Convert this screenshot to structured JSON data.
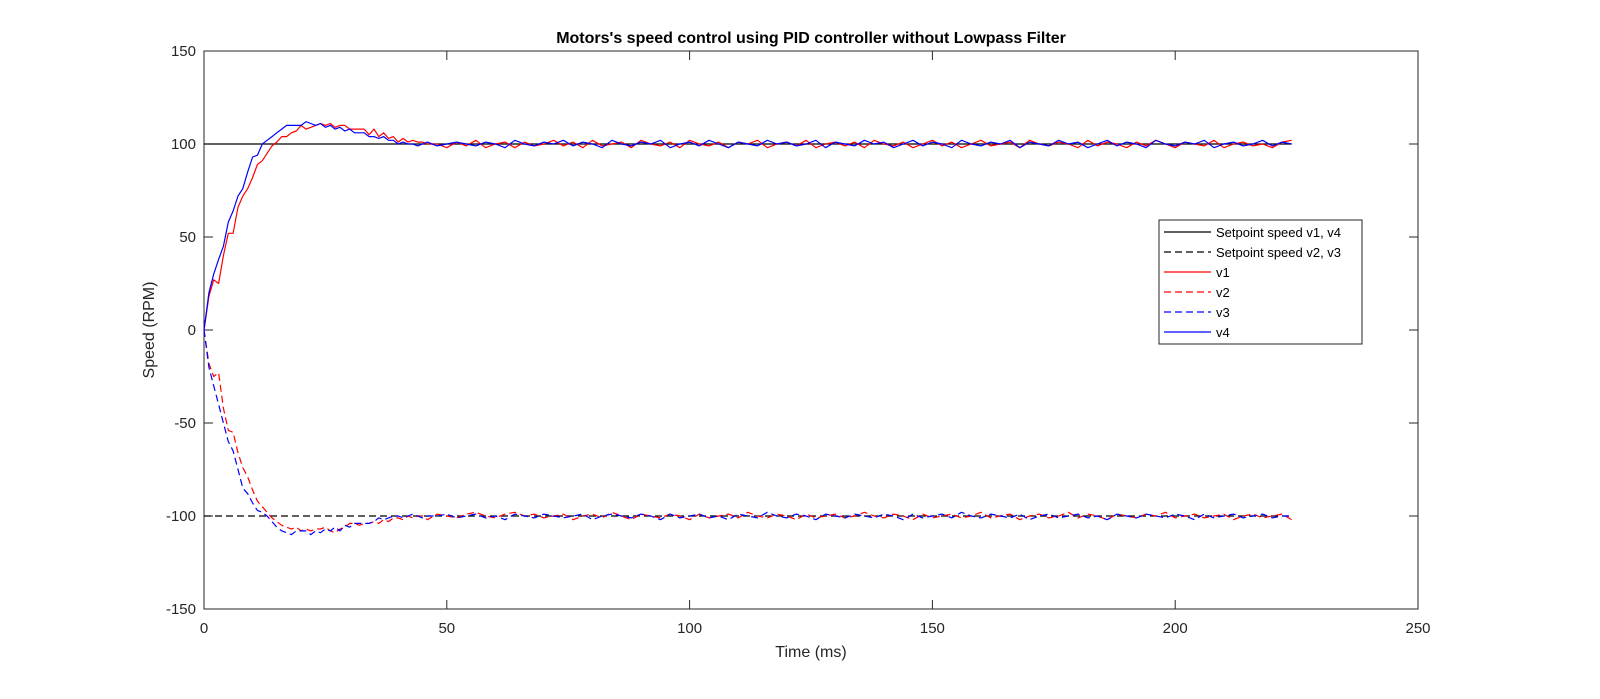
{
  "chart_data": {
    "type": "line",
    "title": "Motors's speed control using PID controller without Lowpass Filter",
    "xlabel": "Time (ms)",
    "ylabel": "Speed (RPM)",
    "xlim": [
      0,
      250
    ],
    "ylim": [
      -150,
      150
    ],
    "x_ticks": [
      0,
      50,
      100,
      150,
      200,
      250
    ],
    "y_ticks": [
      -150,
      -100,
      -50,
      0,
      50,
      100,
      150
    ],
    "x_tick_labels": [
      "0",
      "50",
      "100",
      "150",
      "200",
      "250"
    ],
    "y_tick_labels": [
      "-150",
      "-100",
      "-50",
      "0",
      "50",
      "100",
      "150"
    ],
    "grid": false,
    "legend_position": "right",
    "series": [
      {
        "name": "Setpoint speed v1, v4",
        "color": "#000000",
        "dash": "solid",
        "x": [
          0,
          224
        ],
        "y": [
          100,
          100
        ]
      },
      {
        "name": "Setpoint speed v2, v3",
        "color": "#000000",
        "dash": "dashed",
        "x": [
          0,
          224
        ],
        "y": [
          -100,
          -100
        ]
      },
      {
        "name": "v1",
        "color": "#ff0000",
        "dash": "solid",
        "x": [
          0,
          1,
          2,
          3,
          4,
          5,
          6,
          7,
          8,
          9,
          10,
          11,
          12,
          13,
          14,
          15,
          16,
          17,
          18,
          19,
          20,
          21,
          22,
          23,
          24,
          25,
          26,
          27,
          28,
          29,
          30,
          31,
          32,
          33,
          34,
          35,
          36,
          37,
          38,
          39,
          40,
          41,
          42,
          43,
          44,
          45,
          46,
          48,
          50,
          52,
          54,
          56,
          58,
          60,
          62,
          64,
          66,
          68,
          70,
          72,
          74,
          76,
          78,
          80,
          82,
          84,
          86,
          88,
          90,
          92,
          94,
          96,
          98,
          100,
          102,
          104,
          106,
          108,
          110,
          112,
          114,
          116,
          118,
          120,
          122,
          124,
          126,
          128,
          130,
          132,
          134,
          136,
          138,
          140,
          142,
          144,
          146,
          148,
          150,
          152,
          154,
          156,
          158,
          160,
          162,
          164,
          166,
          168,
          170,
          172,
          174,
          176,
          178,
          180,
          182,
          184,
          186,
          188,
          190,
          192,
          194,
          196,
          198,
          200,
          202,
          204,
          206,
          208,
          210,
          212,
          214,
          216,
          218,
          220,
          222,
          224
        ],
        "y": [
          0,
          18,
          27,
          25,
          40,
          52,
          52,
          66,
          72,
          76,
          82,
          89,
          91,
          95,
          99,
          101,
          104,
          104,
          106,
          107,
          110,
          108,
          109,
          110,
          111,
          110,
          111,
          109,
          110,
          110,
          108,
          108,
          108,
          108,
          105,
          108,
          104,
          106,
          103,
          104,
          101,
          103,
          101,
          102,
          101,
          101,
          100,
          100,
          98,
          101,
          99,
          102,
          98,
          100,
          101,
          98,
          101,
          99,
          100,
          102,
          99,
          101,
          98,
          102,
          99,
          100,
          101,
          98,
          102,
          100,
          99,
          101,
          98,
          102,
          100,
          99,
          101,
          98,
          101,
          100,
          102,
          98,
          100,
          101,
          99,
          102,
          98,
          100,
          101,
          99,
          101,
          98,
          102,
          100,
          99,
          101,
          98,
          100,
          102,
          99,
          101,
          98,
          100,
          102,
          99,
          100,
          101,
          98,
          102,
          100,
          99,
          101,
          100,
          98,
          102,
          99,
          101,
          100,
          98,
          101,
          99,
          102,
          100,
          98,
          101,
          100,
          99,
          102,
          98,
          100,
          101,
          99,
          100,
          98,
          101,
          102
        ]
      },
      {
        "name": "v2",
        "color": "#ff0000",
        "dash": "dashed",
        "x": [
          0,
          1,
          2,
          3,
          4,
          5,
          6,
          7,
          8,
          9,
          10,
          11,
          12,
          13,
          14,
          15,
          16,
          17,
          18,
          19,
          20,
          21,
          22,
          23,
          24,
          25,
          26,
          27,
          28,
          29,
          30,
          31,
          32,
          33,
          34,
          35,
          36,
          37,
          38,
          39,
          40,
          41,
          42,
          43,
          44,
          45,
          46,
          48,
          50,
          52,
          54,
          56,
          58,
          60,
          62,
          64,
          66,
          68,
          70,
          72,
          74,
          76,
          78,
          80,
          82,
          84,
          86,
          88,
          90,
          92,
          94,
          96,
          98,
          100,
          102,
          104,
          106,
          108,
          110,
          112,
          114,
          116,
          118,
          120,
          122,
          124,
          126,
          128,
          130,
          132,
          134,
          136,
          138,
          140,
          142,
          144,
          146,
          148,
          150,
          152,
          154,
          156,
          158,
          160,
          162,
          164,
          166,
          168,
          170,
          172,
          174,
          176,
          178,
          180,
          182,
          184,
          186,
          188,
          190,
          192,
          194,
          196,
          198,
          200,
          202,
          204,
          206,
          208,
          210,
          212,
          214,
          216,
          218,
          220,
          222,
          224
        ],
        "y": [
          0,
          -18,
          -25,
          -23,
          -42,
          -54,
          -55,
          -66,
          -74,
          -79,
          -86,
          -92,
          -95,
          -98,
          -101,
          -103,
          -105,
          -106,
          -107,
          -106,
          -108,
          -107,
          -108,
          -107,
          -107,
          -106,
          -108,
          -109,
          -107,
          -106,
          -104,
          -104,
          -105,
          -104,
          -104,
          -103,
          -104,
          -102,
          -103,
          -101,
          -101,
          -102,
          -100,
          -101,
          -100,
          -100,
          -102,
          -99,
          -100,
          -101,
          -99,
          -98,
          -100,
          -101,
          -99,
          -98,
          -100,
          -99,
          -101,
          -100,
          -99,
          -102,
          -100,
          -99,
          -101,
          -98,
          -100,
          -102,
          -99,
          -100,
          -101,
          -99,
          -100,
          -102,
          -99,
          -101,
          -100,
          -99,
          -101,
          -98,
          -100,
          -101,
          -99,
          -100,
          -102,
          -99,
          -101,
          -100,
          -99,
          -101,
          -100,
          -98,
          -100,
          -101,
          -99,
          -100,
          -102,
          -99,
          -101,
          -100,
          -99,
          -101,
          -100,
          -98,
          -101,
          -100,
          -99,
          -102,
          -100,
          -99,
          -101,
          -100,
          -98,
          -101,
          -99,
          -100,
          -102,
          -99,
          -100,
          -101,
          -99,
          -100,
          -98,
          -101,
          -100,
          -99,
          -101,
          -100,
          -99,
          -102,
          -100,
          -99,
          -101,
          -100,
          -99,
          -102
        ]
      },
      {
        "name": "v3",
        "color": "#0000ff",
        "dash": "dashed",
        "x": [
          0,
          1,
          2,
          3,
          4,
          5,
          6,
          7,
          8,
          9,
          10,
          11,
          12,
          13,
          14,
          15,
          16,
          17,
          18,
          19,
          20,
          21,
          22,
          23,
          24,
          25,
          26,
          27,
          28,
          29,
          30,
          31,
          32,
          33,
          34,
          35,
          36,
          37,
          38,
          39,
          40,
          41,
          42,
          43,
          44,
          45,
          46,
          48,
          50,
          52,
          54,
          56,
          58,
          60,
          62,
          64,
          66,
          68,
          70,
          72,
          74,
          76,
          78,
          80,
          82,
          84,
          86,
          88,
          90,
          92,
          94,
          96,
          98,
          100,
          102,
          104,
          106,
          108,
          110,
          112,
          114,
          116,
          118,
          120,
          122,
          124,
          126,
          128,
          130,
          132,
          134,
          136,
          138,
          140,
          142,
          144,
          146,
          148,
          150,
          152,
          154,
          156,
          158,
          160,
          162,
          164,
          166,
          168,
          170,
          172,
          174,
          176,
          178,
          180,
          182,
          184,
          186,
          188,
          190,
          192,
          194,
          196,
          198,
          200,
          202,
          204,
          206,
          208,
          210,
          212,
          214,
          216,
          218,
          220,
          222,
          224
        ],
        "y": [
          0,
          -20,
          -30,
          -40,
          -50,
          -60,
          -65,
          -75,
          -85,
          -88,
          -93,
          -97,
          -98,
          -100,
          -103,
          -106,
          -108,
          -109,
          -110,
          -108,
          -108,
          -108,
          -110,
          -108,
          -109,
          -107,
          -108,
          -106,
          -108,
          -105,
          -106,
          -104,
          -104,
          -104,
          -104,
          -103,
          -101,
          -102,
          -101,
          -100,
          -100,
          -101,
          -100,
          -99,
          -100,
          -101,
          -100,
          -100,
          -99,
          -101,
          -100,
          -99,
          -101,
          -100,
          -102,
          -99,
          -100,
          -101,
          -99,
          -100,
          -101,
          -100,
          -99,
          -102,
          -100,
          -99,
          -100,
          -101,
          -99,
          -100,
          -102,
          -99,
          -101,
          -100,
          -99,
          -101,
          -100,
          -102,
          -99,
          -100,
          -101,
          -98,
          -100,
          -101,
          -99,
          -100,
          -102,
          -99,
          -100,
          -101,
          -99,
          -100,
          -101,
          -99,
          -100,
          -102,
          -99,
          -101,
          -100,
          -99,
          -101,
          -98,
          -100,
          -101,
          -99,
          -100,
          -101,
          -99,
          -102,
          -100,
          -99,
          -101,
          -100,
          -99,
          -101,
          -100,
          -102,
          -99,
          -100,
          -101,
          -99,
          -100,
          -101,
          -99,
          -100,
          -102,
          -99,
          -101,
          -100,
          -99,
          -101,
          -100,
          -99,
          -101,
          -100,
          -100
        ]
      },
      {
        "name": "v4",
        "color": "#0000ff",
        "dash": "solid",
        "x": [
          0,
          1,
          2,
          3,
          4,
          5,
          6,
          7,
          8,
          9,
          10,
          11,
          12,
          13,
          14,
          15,
          16,
          17,
          18,
          19,
          20,
          21,
          22,
          23,
          24,
          25,
          26,
          27,
          28,
          29,
          30,
          31,
          32,
          33,
          34,
          35,
          36,
          37,
          38,
          39,
          40,
          41,
          42,
          43,
          44,
          45,
          46,
          48,
          50,
          52,
          54,
          56,
          58,
          60,
          62,
          64,
          66,
          68,
          70,
          72,
          74,
          76,
          78,
          80,
          82,
          84,
          86,
          88,
          90,
          92,
          94,
          96,
          98,
          100,
          102,
          104,
          106,
          108,
          110,
          112,
          114,
          116,
          118,
          120,
          122,
          124,
          126,
          128,
          130,
          132,
          134,
          136,
          138,
          140,
          142,
          144,
          146,
          148,
          150,
          152,
          154,
          156,
          158,
          160,
          162,
          164,
          166,
          168,
          170,
          172,
          174,
          176,
          178,
          180,
          182,
          184,
          186,
          188,
          190,
          192,
          194,
          196,
          198,
          200,
          202,
          204,
          206,
          208,
          210,
          212,
          214,
          216,
          218,
          220,
          222,
          224
        ],
        "y": [
          0,
          20,
          30,
          38,
          45,
          58,
          64,
          72,
          76,
          85,
          93,
          94,
          100,
          102,
          104,
          106,
          108,
          110,
          110,
          110,
          110,
          112,
          111,
          110,
          111,
          109,
          110,
          108,
          109,
          107,
          108,
          106,
          106,
          106,
          104,
          104,
          103,
          104,
          102,
          102,
          100,
          101,
          100,
          100,
          99,
          100,
          101,
          99,
          100,
          101,
          100,
          99,
          101,
          100,
          98,
          102,
          100,
          99,
          101,
          100,
          102,
          99,
          101,
          100,
          98,
          102,
          100,
          99,
          101,
          100,
          102,
          98,
          100,
          101,
          99,
          102,
          100,
          98,
          101,
          100,
          99,
          102,
          100,
          101,
          99,
          100,
          102,
          98,
          101,
          100,
          99,
          102,
          100,
          101,
          98,
          100,
          102,
          99,
          101,
          100,
          98,
          102,
          100,
          99,
          101,
          100,
          102,
          98,
          101,
          100,
          99,
          102,
          100,
          101,
          98,
          100,
          102,
          99,
          101,
          100,
          98,
          102,
          100,
          99,
          101,
          100,
          102,
          98,
          100,
          101,
          99,
          100,
          102,
          99,
          101,
          100
        ]
      }
    ]
  }
}
